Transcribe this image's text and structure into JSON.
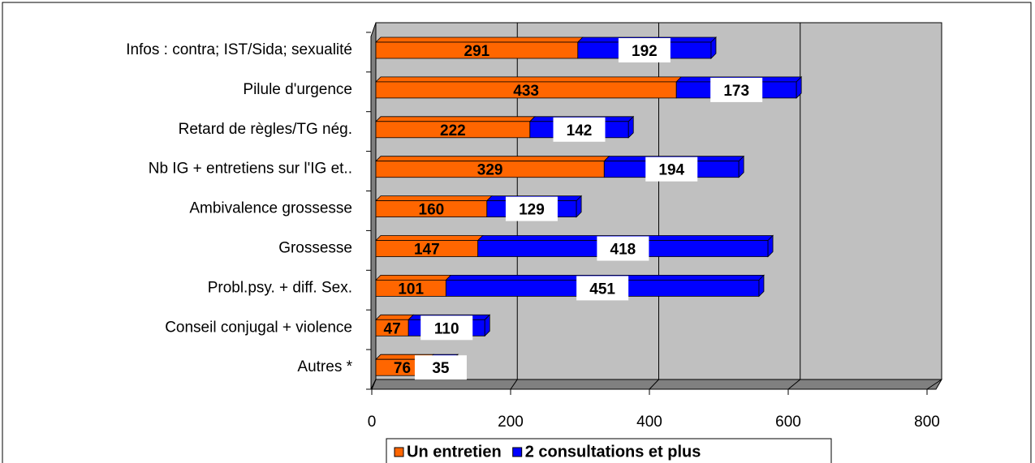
{
  "chart_data": {
    "type": "bar",
    "orientation": "horizontal",
    "stacked": true,
    "categories": [
      "Infos : contra; IST/Sida; sexualité",
      "Pilule d'urgence",
      "Retard de règles/TG nég.",
      "Nb IG + entretiens sur l'IG et..",
      "Ambivalence grossesse",
      "Grossesse",
      "Probl.psy. + diff. Sex.",
      "Conseil conjugal + violence",
      "Autres *"
    ],
    "series": [
      {
        "name": "Un entretien",
        "color": "#ff6600",
        "values": [
          291,
          433,
          222,
          329,
          160,
          147,
          101,
          47,
          76
        ]
      },
      {
        "name": "2 consultations et plus",
        "color": "#0000ff",
        "values": [
          192,
          173,
          142,
          194,
          129,
          418,
          451,
          110,
          35
        ]
      }
    ],
    "xlim": [
      0,
      800
    ],
    "xticks": [
      0,
      200,
      400,
      600,
      800
    ],
    "grid": true,
    "legend": "bottom"
  }
}
